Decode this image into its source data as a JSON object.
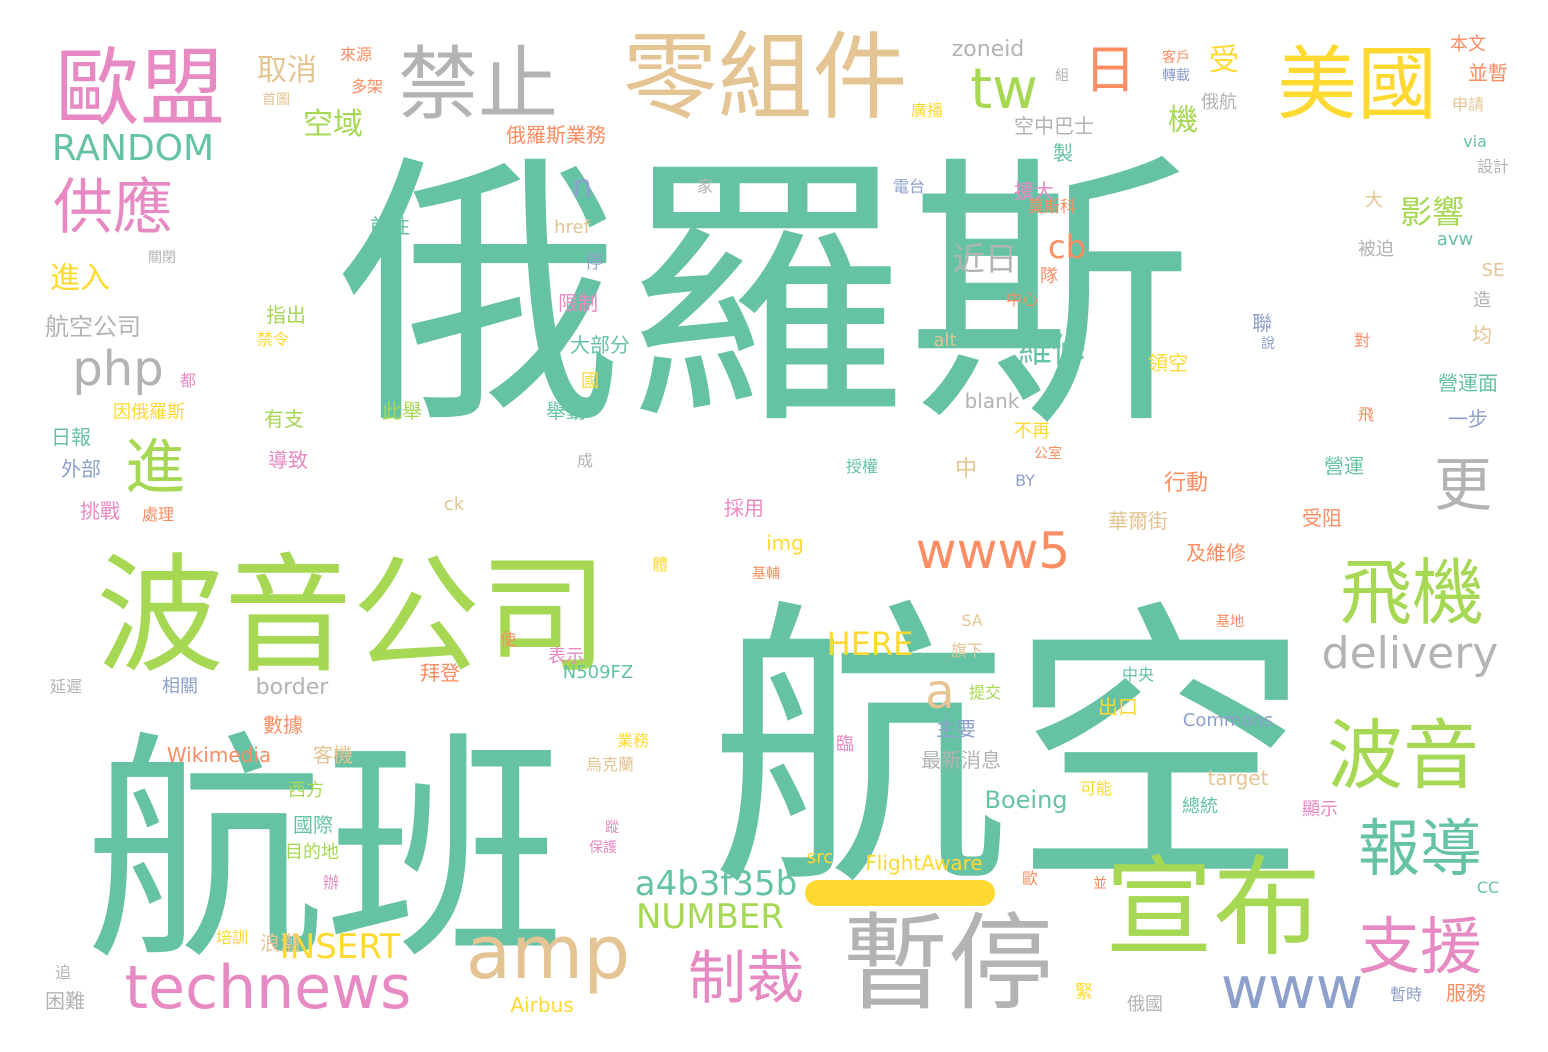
{
  "palette": {
    "teal": "#66c2a5",
    "green": "#a6d854",
    "orange": "#fc8d62",
    "blue": "#8da0cb",
    "pink": "#e78ac3",
    "yellow": "#ffd92f",
    "tan": "#e5c494",
    "gray": "#b3b3b3"
  },
  "words": [
    {
      "t": "俄羅斯",
      "c": "teal"
    },
    {
      "t": "航空",
      "c": "teal"
    },
    {
      "t": "航班",
      "c": "teal"
    },
    {
      "t": "波音公司",
      "c": "green"
    },
    {
      "t": "暫停",
      "c": "gray"
    },
    {
      "t": "宣布",
      "c": "green"
    },
    {
      "t": "零組件",
      "c": "tan"
    },
    {
      "t": "歐盟",
      "c": "pink"
    },
    {
      "t": "禁止",
      "c": "gray"
    },
    {
      "t": "美國",
      "c": "yellow"
    },
    {
      "t": "amp",
      "c": "tan"
    },
    {
      "t": "technews",
      "c": "pink"
    },
    {
      "t": "波音",
      "c": "green"
    },
    {
      "t": "飛機",
      "c": "green"
    },
    {
      "t": "報導",
      "c": "teal"
    },
    {
      "t": "支援",
      "c": "pink"
    },
    {
      "t": "制裁",
      "c": "pink"
    },
    {
      "t": "www5",
      "c": "orange"
    },
    {
      "t": "www",
      "c": "blue"
    },
    {
      "t": "供應",
      "c": "pink"
    },
    {
      "t": "日",
      "c": "orange"
    },
    {
      "t": "tw",
      "c": "green"
    },
    {
      "t": "更",
      "c": "gray"
    },
    {
      "t": "進",
      "c": "green"
    },
    {
      "t": "delivery",
      "c": "gray"
    },
    {
      "t": "a4b3f35b",
      "c": "teal"
    },
    {
      "t": "php",
      "c": "gray"
    },
    {
      "t": "a",
      "c": "tan"
    },
    {
      "t": "RANDOM",
      "c": "teal"
    },
    {
      "t": "INSERT",
      "c": "yellow"
    },
    {
      "t": "NUMBER",
      "c": "green"
    },
    {
      "t": "HERE",
      "c": "yellow"
    },
    {
      "t": "維修",
      "c": "teal"
    },
    {
      "t": "影響",
      "c": "green"
    },
    {
      "t": "近日",
      "c": "gray"
    },
    {
      "t": "cb",
      "c": "orange"
    },
    {
      "t": "n",
      "c": "blue"
    },
    {
      "t": "取消",
      "c": "tan"
    },
    {
      "t": "空域",
      "c": "green"
    },
    {
      "t": "受",
      "c": "yellow"
    },
    {
      "t": "機",
      "c": "green"
    },
    {
      "t": "進入",
      "c": "yellow"
    },
    {
      "t": "航空公司",
      "c": "gray"
    },
    {
      "t": "zoneid",
      "c": "gray"
    },
    {
      "t": "俄羅斯業務",
      "c": "orange"
    },
    {
      "t": "空中巴士",
      "c": "gray"
    },
    {
      "t": "Boeing",
      "c": "teal"
    },
    {
      "t": "border",
      "c": "gray"
    },
    {
      "t": "Wikimedia",
      "c": "orange"
    },
    {
      "t": "FlightAware",
      "c": "yellow"
    },
    {
      "t": "Commons",
      "c": "blue"
    },
    {
      "t": "blank",
      "c": "gray"
    },
    {
      "t": "target",
      "c": "tan"
    },
    {
      "t": "N509FZ",
      "c": "teal"
    },
    {
      "t": "Airbus",
      "c": "yellow"
    },
    {
      "t": "img",
      "c": "yellow"
    },
    {
      "t": "href",
      "c": "tan"
    },
    {
      "t": "alt",
      "c": "tan"
    },
    {
      "t": "src",
      "c": "yellow"
    },
    {
      "t": "ck",
      "c": "tan"
    },
    {
      "t": "avw",
      "c": "teal"
    },
    {
      "t": "SE",
      "c": "tan"
    },
    {
      "t": "SA",
      "c": "tan"
    },
    {
      "t": "via",
      "c": "teal"
    },
    {
      "t": "CC",
      "c": "teal"
    },
    {
      "t": "BY",
      "c": "blue"
    },
    {
      "t": "本文",
      "c": "orange"
    },
    {
      "t": "並暫",
      "c": "orange"
    },
    {
      "t": "申請",
      "c": "tan"
    },
    {
      "t": "設計",
      "c": "gray"
    },
    {
      "t": "被迫",
      "c": "gray"
    },
    {
      "t": "造",
      "c": "gray"
    },
    {
      "t": "均",
      "c": "tan"
    },
    {
      "t": "營運面",
      "c": "teal"
    },
    {
      "t": "一步",
      "c": "blue"
    },
    {
      "t": "營運",
      "c": "teal"
    },
    {
      "t": "受阻",
      "c": "orange"
    },
    {
      "t": "行動",
      "c": "orange"
    },
    {
      "t": "華爾街",
      "c": "tan"
    },
    {
      "t": "及維修",
      "c": "orange"
    },
    {
      "t": "大",
      "c": "tan"
    },
    {
      "t": "來源",
      "c": "orange"
    },
    {
      "t": "多架",
      "c": "orange"
    },
    {
      "t": "首圖",
      "c": "tan"
    },
    {
      "t": "廣播",
      "c": "yellow"
    },
    {
      "t": "客戶",
      "c": "orange"
    },
    {
      "t": "轉載",
      "c": "blue"
    },
    {
      "t": "俄航",
      "c": "gray"
    },
    {
      "t": "家",
      "c": "gray"
    },
    {
      "t": "電台",
      "c": "blue"
    },
    {
      "t": "製",
      "c": "teal"
    },
    {
      "t": "擴大",
      "c": "pink"
    },
    {
      "t": "莫斯科",
      "c": "orange"
    },
    {
      "t": "前往",
      "c": "teal"
    },
    {
      "t": "停",
      "c": "blue"
    },
    {
      "t": "限制",
      "c": "pink"
    },
    {
      "t": "大部分",
      "c": "teal"
    },
    {
      "t": "國",
      "c": "yellow"
    },
    {
      "t": "舉動",
      "c": "teal"
    },
    {
      "t": "此舉",
      "c": "green"
    },
    {
      "t": "有支",
      "c": "green"
    },
    {
      "t": "指出",
      "c": "green"
    },
    {
      "t": "禁令",
      "c": "yellow"
    },
    {
      "t": "因俄羅斯",
      "c": "yellow"
    },
    {
      "t": "都",
      "c": "pink"
    },
    {
      "t": "日報",
      "c": "teal"
    },
    {
      "t": "外部",
      "c": "blue"
    },
    {
      "t": "挑戰",
      "c": "pink"
    },
    {
      "t": "處理",
      "c": "orange"
    },
    {
      "t": "導致",
      "c": "pink"
    },
    {
      "t": "成",
      "c": "gray"
    },
    {
      "t": "關閉",
      "c": "gray"
    },
    {
      "t": "延遲",
      "c": "gray"
    },
    {
      "t": "相關",
      "c": "blue"
    },
    {
      "t": "數據",
      "c": "orange"
    },
    {
      "t": "客機",
      "c": "tan"
    },
    {
      "t": "西方",
      "c": "green"
    },
    {
      "t": "國際",
      "c": "teal"
    },
    {
      "t": "目的地",
      "c": "green"
    },
    {
      "t": "辦",
      "c": "pink"
    },
    {
      "t": "浪潮",
      "c": "tan"
    },
    {
      "t": "培訓",
      "c": "yellow"
    },
    {
      "t": "追",
      "c": "gray"
    },
    {
      "t": "困難",
      "c": "gray"
    },
    {
      "t": "使",
      "c": "orange"
    },
    {
      "t": "表示",
      "c": "pink"
    },
    {
      "t": "拜登",
      "c": "orange"
    },
    {
      "t": "採用",
      "c": "pink"
    },
    {
      "t": "基輔",
      "c": "orange"
    },
    {
      "t": "體",
      "c": "yellow"
    },
    {
      "t": "中",
      "c": "tan"
    },
    {
      "t": "不再",
      "c": "yellow"
    },
    {
      "t": "公室",
      "c": "orange"
    },
    {
      "t": "授權",
      "c": "teal"
    },
    {
      "t": "中心",
      "c": "orange"
    },
    {
      "t": "隊",
      "c": "orange"
    },
    {
      "t": "聯",
      "c": "blue"
    },
    {
      "t": "說",
      "c": "blue"
    },
    {
      "t": "領空",
      "c": "yellow"
    },
    {
      "t": "對",
      "c": "orange"
    },
    {
      "t": "飛",
      "c": "orange"
    },
    {
      "t": "主要",
      "c": "blue"
    },
    {
      "t": "最新消息",
      "c": "gray"
    },
    {
      "t": "旗下",
      "c": "tan"
    },
    {
      "t": "提交",
      "c": "green"
    },
    {
      "t": "出口",
      "c": "yellow"
    },
    {
      "t": "中央",
      "c": "teal"
    },
    {
      "t": "業務",
      "c": "yellow"
    },
    {
      "t": "烏克蘭",
      "c": "tan"
    },
    {
      "t": "臨",
      "c": "pink"
    },
    {
      "t": "可能",
      "c": "yellow"
    },
    {
      "t": "總統",
      "c": "teal"
    },
    {
      "t": "顯示",
      "c": "pink"
    },
    {
      "t": "蹤",
      "c": "pink"
    },
    {
      "t": "保護",
      "c": "pink"
    },
    {
      "t": "基地",
      "c": "orange"
    },
    {
      "t": "並",
      "c": "orange"
    },
    {
      "t": "歐",
      "c": "orange"
    },
    {
      "t": "緊",
      "c": "yellow"
    },
    {
      "t": "俄國",
      "c": "gray"
    },
    {
      "t": "暫時",
      "c": "blue"
    },
    {
      "t": "服務",
      "c": "orange"
    },
    {
      "t": "組",
      "c": "gray"
    }
  ]
}
